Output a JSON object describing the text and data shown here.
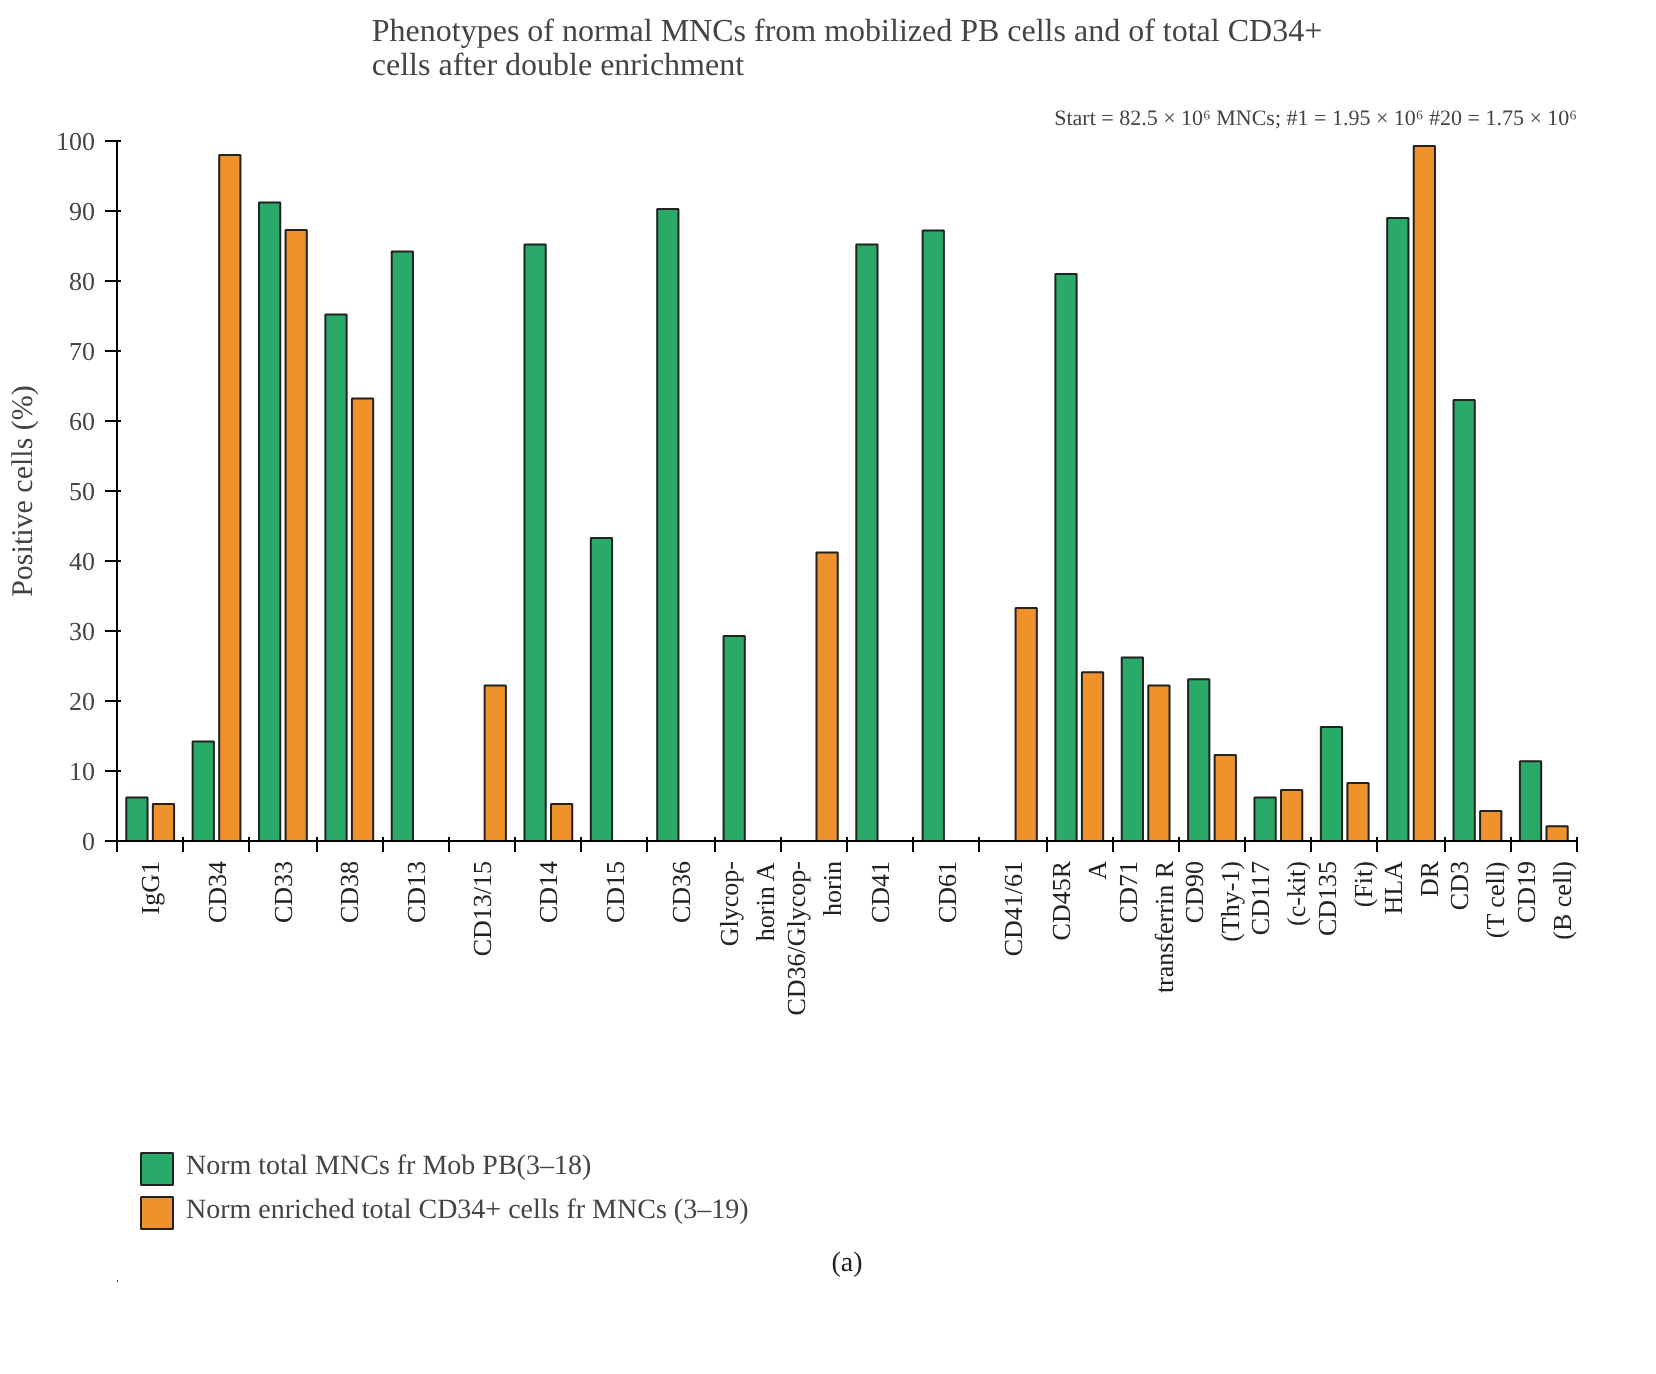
{
  "chart_data": {
    "type": "bar",
    "title": "Phenotypes of normal MNCs from mobilized PB cells and of total CD34+\ncells after double enrichment",
    "ylabel": "Positive cells (%)",
    "annotations": [
      "Start = 82.5 × 10⁶ MNCs; #1 = 1.95 × 10⁶ #20 = 1.75 × 10⁶",
      "(a)"
    ],
    "categories": [
      "IgG1",
      "CD34",
      "CD33",
      "CD38",
      "CD13",
      "CD13/15",
      "CD14",
      "CD15",
      "CD36",
      "Glycop-\nhorin A",
      "CD36/Glycop-\nhorin",
      "CD41",
      "CD61",
      "CD41/61",
      "CD45R\nA",
      "CD71\ntransferrin R",
      "CD90\n(Thy-1)",
      "CD117\n(c-kit)",
      "CD135\n(Fit)",
      "HLA\nDR",
      "CD3\n(T cell)",
      "CD19\n(B cell)"
    ],
    "series": [
      {
        "name": "Norm total MNCs fr Mob PB(3–18)",
        "color": "#2aaa68",
        "values": [
          6.2,
          14.2,
          91.2,
          75.2,
          84.2,
          null,
          85.2,
          43.3,
          90.3,
          29.3,
          null,
          85.2,
          87.2,
          null,
          81,
          26.2,
          23.1,
          6.2,
          16.3,
          89,
          63,
          11.4
        ]
      },
      {
        "name": "Norm enriched total CD34+ cells fr MNCs (3–19)",
        "color": "#ef922b",
        "values": [
          5.3,
          98,
          87.3,
          63.2,
          null,
          22.2,
          5.3,
          null,
          null,
          null,
          41.2,
          null,
          null,
          33.3,
          24.1,
          22.2,
          12.3,
          7.3,
          8.3,
          99.3,
          4.3,
          2.1
        ]
      }
    ],
    "ylim": [
      0,
      100
    ],
    "yticks": [
      0,
      10,
      20,
      30,
      40,
      50,
      60,
      70,
      80,
      90,
      100
    ],
    "grid": false,
    "legend": "bottom"
  }
}
